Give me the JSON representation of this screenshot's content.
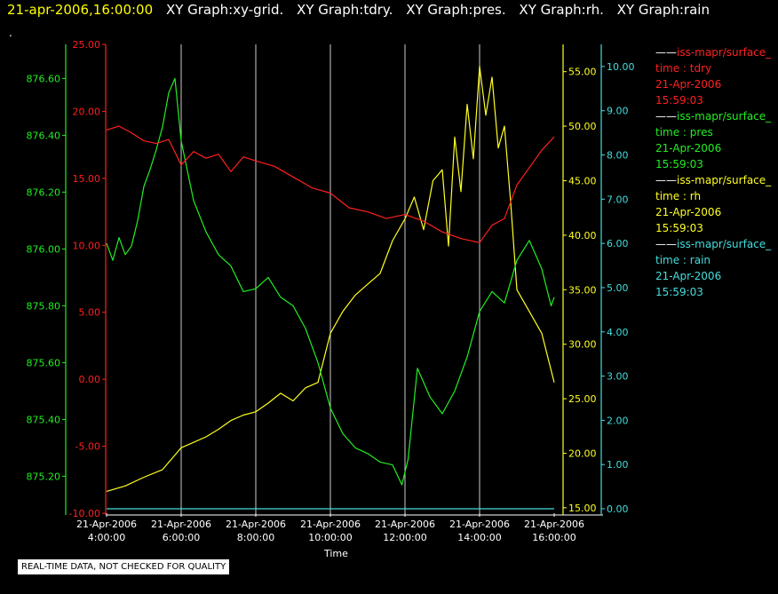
{
  "title": {
    "timestamp": "21-apr-2006,16:00:00",
    "graphs": [
      "XY Graph:xy-grid.",
      "XY Graph:tdry.",
      "XY Graph:pres.",
      "XY Graph:rh.",
      "XY Graph:rain"
    ]
  },
  "dot_text": ".",
  "note": "REAL-TIME DATA, NOT CHECKED FOR QUALITY",
  "colors": {
    "tdry": "#ff2020",
    "pres": "#22ee22",
    "rh": "#ffff22",
    "rain": "#44dddd",
    "grid": "#cccccc"
  },
  "legend": [
    {
      "name": "iss-mapr/surface_",
      "lines": [
        "time : tdry",
        "21-Apr-2006",
        "15:59:03"
      ],
      "color": "#ff2020"
    },
    {
      "name": "iss-mapr/surface_",
      "lines": [
        "time : pres",
        "21-Apr-2006",
        "15:59:03"
      ],
      "color": "#22ee22"
    },
    {
      "name": "iss-mapr/surface_",
      "lines": [
        "time : rh",
        "21-Apr-2006",
        "15:59:03"
      ],
      "color": "#ffff22"
    },
    {
      "name": "iss-mapr/surface_",
      "lines": [
        "time : rain",
        "21-Apr-2006",
        "15:59:03"
      ],
      "color": "#44dddd"
    }
  ],
  "chart_data": {
    "type": "line",
    "xlabel": "Time",
    "x_ticks": [
      {
        "date": "21-Apr-2006",
        "time": "4:00:00"
      },
      {
        "date": "21-Apr-2006",
        "time": "6:00:00"
      },
      {
        "date": "21-Apr-2006",
        "time": "8:00:00"
      },
      {
        "date": "21-Apr-2006",
        "time": "10:00:00"
      },
      {
        "date": "21-Apr-2006",
        "time": "12:00:00"
      },
      {
        "date": "21-Apr-2006",
        "time": "14:00:00"
      },
      {
        "date": "21-Apr-2006",
        "time": "16:00:00"
      }
    ],
    "xlim": [
      "21-Apr-2006 4:00:00",
      "21-Apr-2006 16:00:00"
    ],
    "grid": "vertical",
    "axes": {
      "tdry": {
        "ylim": [
          -10,
          25
        ],
        "ticks": [
          "25.00",
          "20.00",
          "15.00",
          "10.00",
          "5.00",
          "0.00",
          "-5.00",
          "-10.00"
        ]
      },
      "pres": {
        "ylim": [
          875.07,
          876.72
        ],
        "ticks": [
          "876.60",
          "876.40",
          "876.20",
          "876.00",
          "875.80",
          "875.60",
          "875.40",
          "875.20"
        ]
      },
      "rh": {
        "ylim": [
          14.5,
          57.5
        ],
        "ticks": [
          "55.00",
          "50.00",
          "45.00",
          "40.00",
          "35.00",
          "30.00",
          "25.00",
          "20.00",
          "15.00"
        ]
      },
      "rain": {
        "ylim": [
          -0.1,
          10.5
        ],
        "ticks": [
          "10.00",
          "9.00",
          "8.00",
          "7.00",
          "6.00",
          "5.00",
          "4.00",
          "3.00",
          "2.00",
          "1.00",
          "0.00"
        ]
      }
    },
    "series": [
      {
        "name": "time : tdry",
        "x": [
          "04:00",
          "04:20",
          "04:40",
          "05:00",
          "05:20",
          "05:40",
          "06:00",
          "06:20",
          "06:40",
          "07:00",
          "07:20",
          "07:40",
          "08:00",
          "08:30",
          "09:00",
          "09:30",
          "10:00",
          "10:30",
          "11:00",
          "11:30",
          "12:00",
          "12:30",
          "13:00",
          "13:30",
          "14:00",
          "14:20",
          "14:40",
          "15:00",
          "15:20",
          "15:40",
          "16:00"
        ],
        "values": [
          18.6,
          18.9,
          18.4,
          17.8,
          17.6,
          17.9,
          16.0,
          17.0,
          16.5,
          16.8,
          15.5,
          16.6,
          16.3,
          15.9,
          15.1,
          14.3,
          13.9,
          12.8,
          12.5,
          12.0,
          12.3,
          11.8,
          11.0,
          10.5,
          10.2,
          11.5,
          12.0,
          14.5,
          15.8,
          17.1,
          18.1
        ]
      },
      {
        "name": "time : pres",
        "x": [
          "04:00",
          "04:10",
          "04:20",
          "04:30",
          "04:40",
          "04:50",
          "05:00",
          "05:10",
          "05:20",
          "05:30",
          "05:40",
          "05:50",
          "06:00",
          "06:20",
          "06:40",
          "07:00",
          "07:20",
          "07:40",
          "08:00",
          "08:20",
          "08:40",
          "09:00",
          "09:20",
          "09:40",
          "10:00",
          "10:20",
          "10:40",
          "11:00",
          "11:20",
          "11:40",
          "11:55",
          "12:05",
          "12:20",
          "12:40",
          "13:00",
          "13:20",
          "13:40",
          "14:00",
          "14:20",
          "14:40",
          "15:00",
          "15:20",
          "15:40",
          "15:55",
          "16:00"
        ],
        "values": [
          876.02,
          875.96,
          876.04,
          875.98,
          876.01,
          876.1,
          876.22,
          876.28,
          876.35,
          876.43,
          876.55,
          876.6,
          876.38,
          876.17,
          876.06,
          875.98,
          875.94,
          875.85,
          875.86,
          875.9,
          875.83,
          875.8,
          875.72,
          875.6,
          875.44,
          875.35,
          875.3,
          875.28,
          875.25,
          875.24,
          875.17,
          875.26,
          875.58,
          875.48,
          875.42,
          875.5,
          875.62,
          875.78,
          875.85,
          875.81,
          875.96,
          876.03,
          875.93,
          875.8,
          875.83
        ]
      },
      {
        "name": "time : rh",
        "x": [
          "04:00",
          "04:30",
          "05:00",
          "05:30",
          "06:00",
          "06:20",
          "06:40",
          "07:00",
          "07:20",
          "07:40",
          "08:00",
          "08:20",
          "08:40",
          "09:00",
          "09:20",
          "09:40",
          "10:00",
          "10:20",
          "10:40",
          "11:00",
          "11:20",
          "11:40",
          "12:00",
          "12:15",
          "12:30",
          "12:45",
          "13:00",
          "13:10",
          "13:20",
          "13:30",
          "13:40",
          "13:50",
          "14:00",
          "14:10",
          "14:20",
          "14:30",
          "14:40",
          "14:50",
          "15:00",
          "15:20",
          "15:40",
          "16:00"
        ],
        "values": [
          16.5,
          17.0,
          17.8,
          18.5,
          20.5,
          21.0,
          21.5,
          22.2,
          23.0,
          23.5,
          23.8,
          24.6,
          25.5,
          24.8,
          26.0,
          26.5,
          31.0,
          33.0,
          34.5,
          35.5,
          36.5,
          39.5,
          41.5,
          43.5,
          40.5,
          45.0,
          46.0,
          39.0,
          49.0,
          44.0,
          52.0,
          47.0,
          55.5,
          51.0,
          54.5,
          48.0,
          50.0,
          43.0,
          35.0,
          33.0,
          31.0,
          26.5
        ]
      },
      {
        "name": "time : rain",
        "x": [
          "04:00",
          "16:00"
        ],
        "values": [
          0,
          0
        ]
      }
    ]
  }
}
